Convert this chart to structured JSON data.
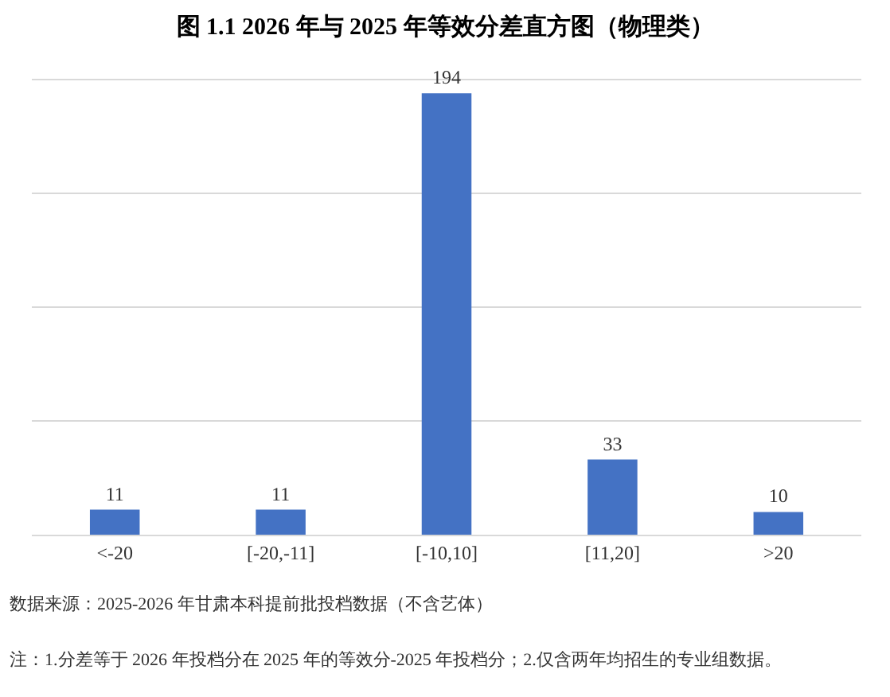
{
  "chart_data": {
    "type": "bar",
    "title": "图 1.1 2026 年与 2025 年等效分差直方图（物理类）",
    "categories": [
      "<-20",
      "[-20,-11]",
      "[-10,10]",
      "[11,20]",
      ">20"
    ],
    "values": [
      11,
      11,
      194,
      33,
      10
    ],
    "color": "#4472c4",
    "tick_labels": "x",
    "grid": "y",
    "data_labels": true,
    "legend": false,
    "annotations": [
      "数据来源：2025-2026 年甘肃本科提前批投档数据（不含艺体）",
      "注：1.分差等于 2026 年投档分在 2025 年的等效分-2025 年投档分；2.仅含两年均招生的专业组数据。"
    ]
  }
}
